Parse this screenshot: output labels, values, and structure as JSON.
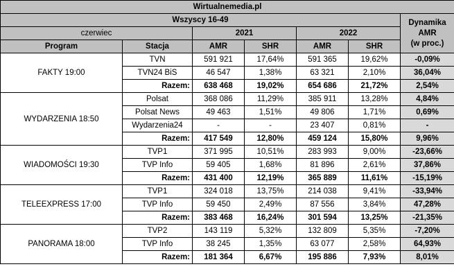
{
  "header": {
    "site": "Wirtualnemedia.pl",
    "group": "Wszyscy 16-49",
    "month": "czerwiec",
    "year_a": "2021",
    "year_b": "2022",
    "dynamics": [
      "Dynamika",
      "AMR",
      "(w proc.)"
    ],
    "col_program": "Program",
    "col_station": "Stacja",
    "col_amr": "AMR",
    "col_shr": "SHR"
  },
  "blocks": [
    {
      "program": "FAKTY 19:00",
      "rows": [
        {
          "station": "TVN",
          "amr21": "591 921",
          "shr21": "17,64%",
          "amr22": "591 365",
          "shr22": "19,62%",
          "dyn": "-0,09%"
        },
        {
          "station": "TVN24 BiS",
          "amr21": "46 547",
          "shr21": "1,38%",
          "amr22": "63 321",
          "shr22": "2,10%",
          "dyn": "36,04%"
        },
        {
          "station": "Razem:",
          "amr21": "638 468",
          "shr21": "19,02%",
          "amr22": "654 686",
          "shr22": "21,72%",
          "dyn": "2,54%"
        }
      ]
    },
    {
      "program": "WYDARZENIA 18:50",
      "rows": [
        {
          "station": "Polsat",
          "amr21": "368 086",
          "shr21": "11,29%",
          "amr22": "385 911",
          "shr22": "13,28%",
          "dyn": "4,84%"
        },
        {
          "station": "Polsat News",
          "amr21": "49 463",
          "shr21": "1,51%",
          "amr22": "49 806",
          "shr22": "1,71%",
          "dyn": "0,69%"
        },
        {
          "station": "Wydarzenia24",
          "amr21": "-",
          "shr21": "-",
          "amr22": "23 407",
          "shr22": "0,81%",
          "dyn": "-"
        },
        {
          "station": "Razem:",
          "amr21": "417 549",
          "shr21": "12,80%",
          "amr22": "459 124",
          "shr22": "15,80%",
          "dyn": "9,96%"
        }
      ]
    },
    {
      "program": "WIADOMOŚCI 19:30",
      "rows": [
        {
          "station": "TVP1",
          "amr21": "371 995",
          "shr21": "10,51%",
          "amr22": "283 993",
          "shr22": "9,00%",
          "dyn": "-23,66%"
        },
        {
          "station": "TVP Info",
          "amr21": "59 405",
          "shr21": "1,68%",
          "amr22": "81 896",
          "shr22": "2,61%",
          "dyn": "37,86%"
        },
        {
          "station": "Razem:",
          "amr21": "431 400",
          "shr21": "12,19%",
          "amr22": "365 889",
          "shr22": "11,61%",
          "dyn": "-15,19%"
        }
      ]
    },
    {
      "program": "TELEEXPRESS 17:00",
      "rows": [
        {
          "station": "TVP1",
          "amr21": "324 018",
          "shr21": "13,75%",
          "amr22": "214 038",
          "shr22": "9,41%",
          "dyn": "-33,94%"
        },
        {
          "station": "TVP Info",
          "amr21": "59 450",
          "shr21": "2,49%",
          "amr22": "87 556",
          "shr22": "3,84%",
          "dyn": "47,28%"
        },
        {
          "station": "Razem:",
          "amr21": "383 468",
          "shr21": "16,24%",
          "amr22": "301 594",
          "shr22": "13,25%",
          "dyn": "-21,35%"
        }
      ]
    },
    {
      "program": "PANORAMA 18:00",
      "rows": [
        {
          "station": "TVP2",
          "amr21": "143 119",
          "shr21": "5,32%",
          "amr22": "132 809",
          "shr22": "5,35%",
          "dyn": "-7,20%"
        },
        {
          "station": "TVP Info",
          "amr21": "38 245",
          "shr21": "1,35%",
          "amr22": "63 077",
          "shr22": "2,58%",
          "dyn": "64,93%"
        },
        {
          "station": "Razem:",
          "amr21": "181 364",
          "shr21": "6,67%",
          "amr22": "195 886",
          "shr22": "7,93%",
          "dyn": "8,01%"
        }
      ]
    }
  ]
}
